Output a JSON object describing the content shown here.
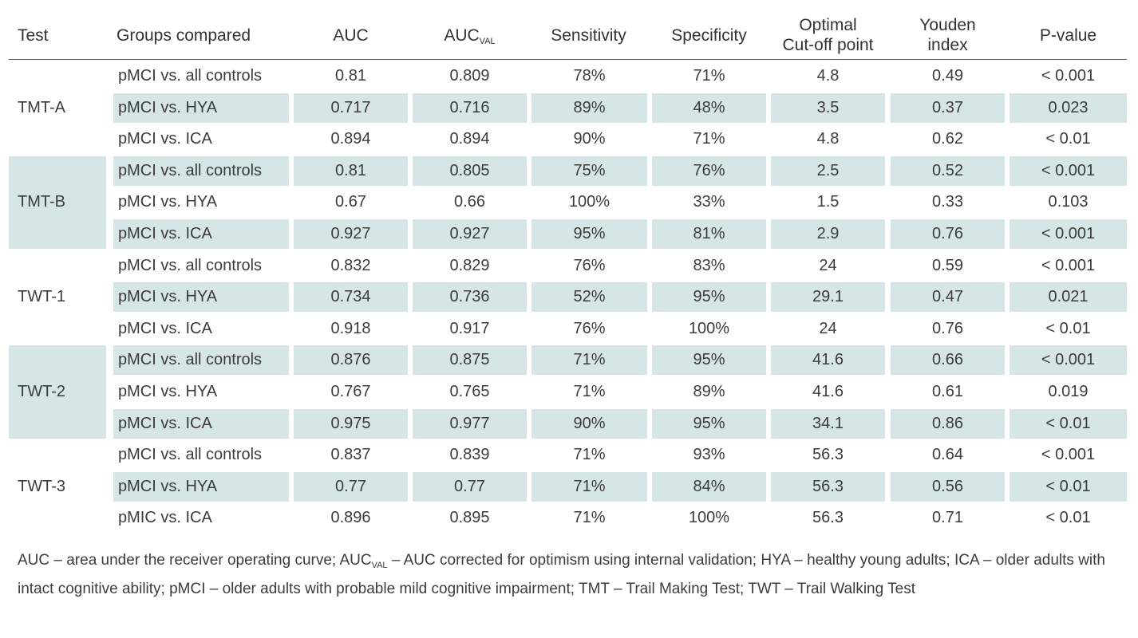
{
  "headers": {
    "test": "Test",
    "groups": "Groups compared",
    "auc": "AUC",
    "auc_val_main": "AUC",
    "auc_val_sub": "VAL",
    "sensitivity": "Sensitivity",
    "specificity": "Specificity",
    "cutoff_line1": "Optimal",
    "cutoff_line2": "Cut-off point",
    "youden_line1": "Youden",
    "youden_line2": "index",
    "pvalue": "P-value"
  },
  "tests": [
    {
      "name": "TMT-A",
      "rows": [
        {
          "group": "pMCI vs. all controls",
          "auc": "0.81",
          "auc_val": "0.809",
          "sens": "78%",
          "spec": "71%",
          "cutoff": "4.8",
          "youden": "0.49",
          "p": "< 0.001"
        },
        {
          "group": "pMCI vs. HYA",
          "auc": "0.717",
          "auc_val": "0.716",
          "sens": "89%",
          "spec": "48%",
          "cutoff": "3.5",
          "youden": "0.37",
          "p": "0.023"
        },
        {
          "group": "pMCI vs. ICA",
          "auc": "0.894",
          "auc_val": "0.894",
          "sens": "90%",
          "spec": "71%",
          "cutoff": "4.8",
          "youden": "0.62",
          "p": "< 0.01"
        }
      ]
    },
    {
      "name": "TMT-B",
      "rows": [
        {
          "group": "pMCI vs. all controls",
          "auc": "0.81",
          "auc_val": "0.805",
          "sens": "75%",
          "spec": "76%",
          "cutoff": "2.5",
          "youden": "0.52",
          "p": "< 0.001"
        },
        {
          "group": "pMCI vs. HYA",
          "auc": "0.67",
          "auc_val": "0.66",
          "sens": "100%",
          "spec": "33%",
          "cutoff": "1.5",
          "youden": "0.33",
          "p": "0.103"
        },
        {
          "group": "pMCI vs. ICA",
          "auc": "0.927",
          "auc_val": "0.927",
          "sens": "95%",
          "spec": "81%",
          "cutoff": "2.9",
          "youden": "0.76",
          "p": "< 0.001"
        }
      ]
    },
    {
      "name": "TWT-1",
      "rows": [
        {
          "group": "pMCI vs. all controls",
          "auc": "0.832",
          "auc_val": "0.829",
          "sens": "76%",
          "spec": "83%",
          "cutoff": "24",
          "youden": "0.59",
          "p": "< 0.001"
        },
        {
          "group": "pMCI vs. HYA",
          "auc": "0.734",
          "auc_val": "0.736",
          "sens": "52%",
          "spec": "95%",
          "cutoff": "29.1",
          "youden": "0.47",
          "p": "0.021"
        },
        {
          "group": "pMCI vs. ICA",
          "auc": "0.918",
          "auc_val": "0.917",
          "sens": "76%",
          "spec": "100%",
          "cutoff": "24",
          "youden": "0.76",
          "p": "< 0.01"
        }
      ]
    },
    {
      "name": "TWT-2",
      "rows": [
        {
          "group": "pMCI vs. all controls",
          "auc": "0.876",
          "auc_val": "0.875",
          "sens": "71%",
          "spec": "95%",
          "cutoff": "41.6",
          "youden": "0.66",
          "p": "< 0.001"
        },
        {
          "group": "pMCI vs. HYA",
          "auc": "0.767",
          "auc_val": "0.765",
          "sens": "71%",
          "spec": "89%",
          "cutoff": "41.6",
          "youden": "0.61",
          "p": "0.019"
        },
        {
          "group": "pMCI vs. ICA",
          "auc": "0.975",
          "auc_val": "0.977",
          "sens": "90%",
          "spec": "95%",
          "cutoff": "34.1",
          "youden": "0.86",
          "p": "< 0.01"
        }
      ]
    },
    {
      "name": "TWT-3",
      "rows": [
        {
          "group": "pMCI vs.  all controls",
          "auc": "0.837",
          "auc_val": "0.839",
          "sens": "71%",
          "spec": "93%",
          "cutoff": "56.3",
          "youden": "0.64",
          "p": "< 0.001"
        },
        {
          "group": "pMCI vs. HYA",
          "auc": "0.77",
          "auc_val": "0.77",
          "sens": "71%",
          "spec": "84%",
          "cutoff": "56.3",
          "youden": "0.56",
          "p": "< 0.01"
        },
        {
          "group": "pMIC vs. ICA",
          "auc": "0.896",
          "auc_val": "0.895",
          "sens": "71%",
          "spec": "100%",
          "cutoff": "56.3",
          "youden": "0.71",
          "p": "< 0.01"
        }
      ]
    }
  ],
  "footnote": {
    "part1": "AUC – area under the receiver operating curve; AUC",
    "sub": "VAL",
    "part2": " – AUC corrected for optimism using internal validation; HYA – healthy young adults; ICA – older adults with intact cognitive ability; pMCI – older adults with probable mild cognitive impairment; TMT – Trail Making Test; TWT – Trail Walking Test"
  },
  "colors": {
    "shade": "#d6e5e5",
    "text": "#3c3c3c",
    "rule": "#555555"
  }
}
